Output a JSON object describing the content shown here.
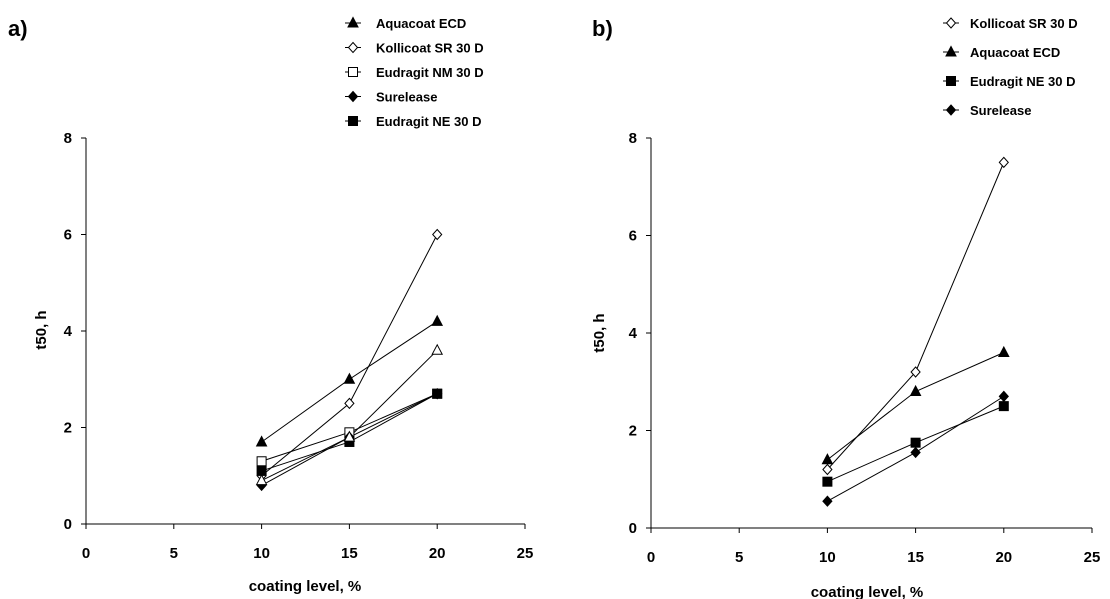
{
  "chart_data": [
    {
      "panel_label": "a)",
      "type": "line",
      "xlabel": "coating level, %",
      "ylabel": "t50, h",
      "xlim": [
        0,
        25
      ],
      "ylim": [
        0,
        8
      ],
      "xticks": [
        "0",
        "5",
        "10",
        "15",
        "20",
        "25"
      ],
      "yticks": [
        "0",
        "2",
        "4",
        "6",
        "8"
      ],
      "grid": false,
      "legend_position": "top-right",
      "legend": [
        {
          "label": "Aquacoat ECD",
          "marker": "triangle-filled"
        },
        {
          "label": "Kollicoat SR 30 D",
          "marker": "diamond-open"
        },
        {
          "label": "Eudragit NM 30 D",
          "marker": "square-open"
        },
        {
          "label": "Surelease",
          "marker": "diamond-filled"
        },
        {
          "label": "Eudragit NE 30 D",
          "marker": "square-filled"
        }
      ],
      "series": [
        {
          "name": "Aquacoat ECD",
          "marker": "triangle-filled",
          "points": [
            [
              10,
              1.7
            ],
            [
              15,
              3.0
            ],
            [
              20,
              4.2
            ]
          ]
        },
        {
          "name": "Kollicoat SR 30 D",
          "marker": "diamond-open",
          "points": [
            [
              10,
              1.0
            ],
            [
              15,
              2.5
            ],
            [
              20,
              6.0
            ]
          ]
        },
        {
          "name": "Eudragit NM 30 D",
          "marker": "square-open",
          "points": [
            [
              10,
              1.3
            ],
            [
              15,
              1.9
            ],
            [
              20,
              2.7
            ]
          ]
        },
        {
          "name": "Surelease",
          "marker": "diamond-filled",
          "points": [
            [
              10,
              0.8
            ],
            [
              15,
              1.8
            ],
            [
              20,
              2.7
            ]
          ]
        },
        {
          "name": "Eudragit NE 30 D",
          "marker": "square-filled",
          "points": [
            [
              10,
              1.1
            ],
            [
              15,
              1.7
            ],
            [
              20,
              2.7
            ]
          ]
        },
        {
          "name": "",
          "marker": "triangle-open",
          "points": [
            [
              10,
              0.9
            ],
            [
              15,
              1.8
            ],
            [
              20,
              3.6
            ]
          ]
        }
      ]
    },
    {
      "panel_label": "b)",
      "type": "line",
      "xlabel": "coating level, %",
      "ylabel": "t50, h",
      "xlim": [
        0,
        25
      ],
      "ylim": [
        0,
        8
      ],
      "xticks": [
        "0",
        "5",
        "10",
        "15",
        "20",
        "25"
      ],
      "yticks": [
        "0",
        "2",
        "4",
        "6",
        "8"
      ],
      "grid": false,
      "legend_position": "top-right",
      "legend": [
        {
          "label": "Kollicoat SR 30 D",
          "marker": "diamond-open"
        },
        {
          "label": "Aquacoat ECD",
          "marker": "triangle-filled"
        },
        {
          "label": "Eudragit NE 30 D",
          "marker": "square-filled"
        },
        {
          "label": "Surelease",
          "marker": "diamond-filled"
        }
      ],
      "series": [
        {
          "name": "Kollicoat SR 30 D",
          "marker": "diamond-open",
          "points": [
            [
              10,
              1.2
            ],
            [
              15,
              3.2
            ],
            [
              20,
              7.5
            ]
          ]
        },
        {
          "name": "Aquacoat ECD",
          "marker": "triangle-filled",
          "points": [
            [
              10,
              1.4
            ],
            [
              15,
              2.8
            ],
            [
              20,
              3.6
            ]
          ]
        },
        {
          "name": "Eudragit NE 30 D",
          "marker": "square-filled",
          "points": [
            [
              10,
              0.95
            ],
            [
              15,
              1.75
            ],
            [
              20,
              2.5
            ]
          ]
        },
        {
          "name": "Surelease",
          "marker": "diamond-filled",
          "points": [
            [
              10,
              0.55
            ],
            [
              15,
              1.55
            ],
            [
              20,
              2.7
            ]
          ]
        }
      ]
    }
  ]
}
